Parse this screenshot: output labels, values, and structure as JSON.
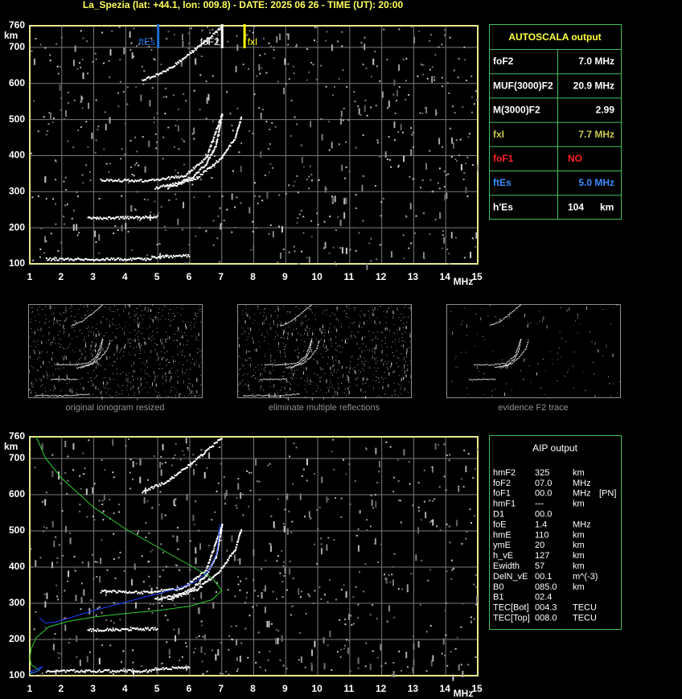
{
  "header": {
    "title": "La_Spezia (lat: +44.1, lon: 009.8) - DATE: 2025 06 26 - TIME (UT): 20:00"
  },
  "ionogram": {
    "y_unit": "km",
    "x_unit": "MHz",
    "xlim": [
      1,
      15
    ],
    "ylim": [
      100,
      760
    ],
    "xticks": [
      1,
      2,
      3,
      4,
      5,
      6,
      7,
      8,
      9,
      10,
      11,
      12,
      13,
      14,
      15
    ],
    "yticks": [
      100,
      200,
      300,
      400,
      500,
      600,
      700,
      760
    ],
    "markers": [
      {
        "label": "ftEs",
        "value": 5.0,
        "color": "#1e6fd9"
      },
      {
        "label": "foF2",
        "value": 7.0,
        "color": "#ffffff"
      },
      {
        "label": "fxI",
        "value": 7.7,
        "color": "#ffff00"
      }
    ]
  },
  "autoscala": {
    "title": "AUTOSCALA output",
    "rows": [
      {
        "name": "foF2",
        "value": "7.0 MHz",
        "color": "#ffffff"
      },
      {
        "name": "MUF(3000)F2",
        "value": "20.9 MHz",
        "color": "#ffffff"
      },
      {
        "name": "M(3000)F2",
        "value": "2.99",
        "color": "#ffffff"
      },
      {
        "name": "fxI",
        "value": "7.7 MHz",
        "color": "#c8c850"
      },
      {
        "name": "foF1",
        "value": "NO",
        "color": "#ff2020"
      },
      {
        "name": "ftEs",
        "value": "5.0 MHz",
        "color": "#3a8cff"
      },
      {
        "name": "h'Es",
        "value": "104",
        "unit": "km",
        "color": "#ffffff"
      }
    ]
  },
  "thumbnails": {
    "captions": [
      "original ionogram resized",
      "eliminate multiple reflections",
      "evidence F2 trace"
    ]
  },
  "aip": {
    "title": "AIP output",
    "rows": [
      [
        "hmF2",
        "325",
        "km"
      ],
      [
        "foF2",
        "07.0",
        "MHz"
      ],
      [
        "foF1",
        "00.0",
        "MHz",
        "[PN]"
      ],
      [
        "hmF1",
        "---",
        "km"
      ],
      [
        "D1",
        "00.0"
      ],
      [
        "foE",
        "1.4",
        "MHz"
      ],
      [
        "hmE",
        "110",
        "km"
      ],
      [
        "ymE",
        "20",
        "km"
      ],
      [
        "h_vE",
        "127",
        "km"
      ],
      [
        "Ewidth",
        "57",
        "km"
      ],
      [
        "DelN_vE",
        "00.1",
        "m^(-3)"
      ],
      [
        "B0",
        "085.0",
        "km"
      ],
      [
        "B1",
        "02.4"
      ],
      [
        "TEC[Bot]",
        "004.3",
        "TECU"
      ],
      [
        "TEC[Top]",
        "008.0",
        "TECU"
      ]
    ]
  }
}
